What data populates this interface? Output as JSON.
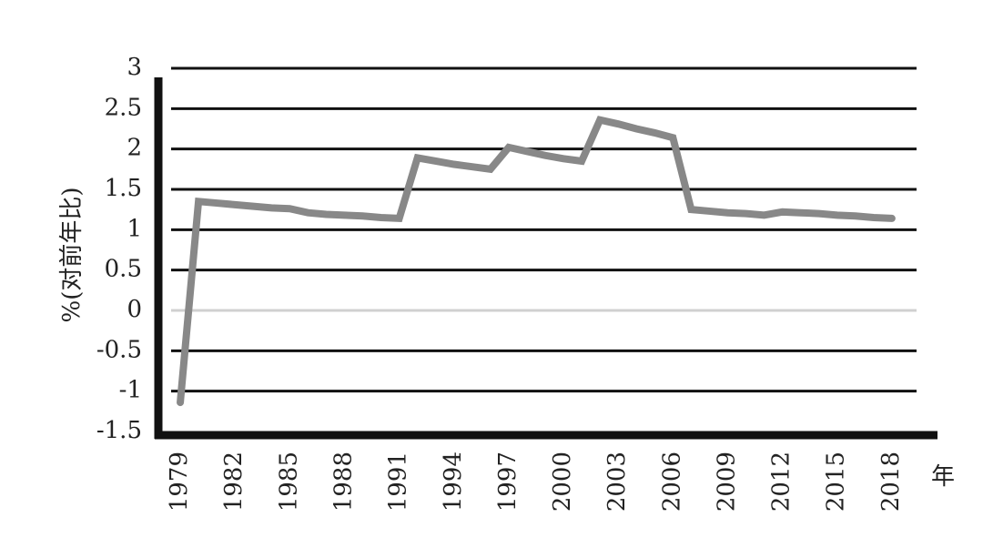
{
  "chart_data": {
    "type": "line",
    "y_label": "%(对前年比)",
    "x_label": "年",
    "x": [
      1979,
      1980,
      1981,
      1982,
      1983,
      1984,
      1985,
      1986,
      1987,
      1988,
      1989,
      1990,
      1991,
      1992,
      1993,
      1994,
      1995,
      1996,
      1997,
      1998,
      1999,
      2000,
      2001,
      2002,
      2003,
      2004,
      2005,
      2006,
      2007,
      2008,
      2009,
      2010,
      2011,
      2012,
      2013,
      2014,
      2015,
      2016,
      2017,
      2018
    ],
    "series": [
      {
        "color": "#888888",
        "values": [
          -1.14,
          1.35,
          1.33,
          1.31,
          1.29,
          1.27,
          1.26,
          1.21,
          1.19,
          1.18,
          1.17,
          1.15,
          1.14,
          1.89,
          1.85,
          1.81,
          1.78,
          1.75,
          2.02,
          1.97,
          1.92,
          1.88,
          1.85,
          2.36,
          2.31,
          2.25,
          2.2,
          2.14,
          1.25,
          1.23,
          1.21,
          1.2,
          1.18,
          1.22,
          1.21,
          1.2,
          1.18,
          1.17,
          1.15,
          1.14
        ]
      }
    ],
    "xlim": [
      1978,
      2020.5
    ],
    "xticks": [
      1979,
      1982,
      1985,
      1988,
      1991,
      1994,
      1997,
      2000,
      2003,
      2006,
      2009,
      2012,
      2015,
      2018
    ],
    "ylim": [
      -1.5,
      3
    ],
    "yticks": [
      -1.5,
      -1,
      -0.5,
      0,
      0.5,
      1,
      1.5,
      2,
      2.5,
      3
    ],
    "grid": true
  }
}
